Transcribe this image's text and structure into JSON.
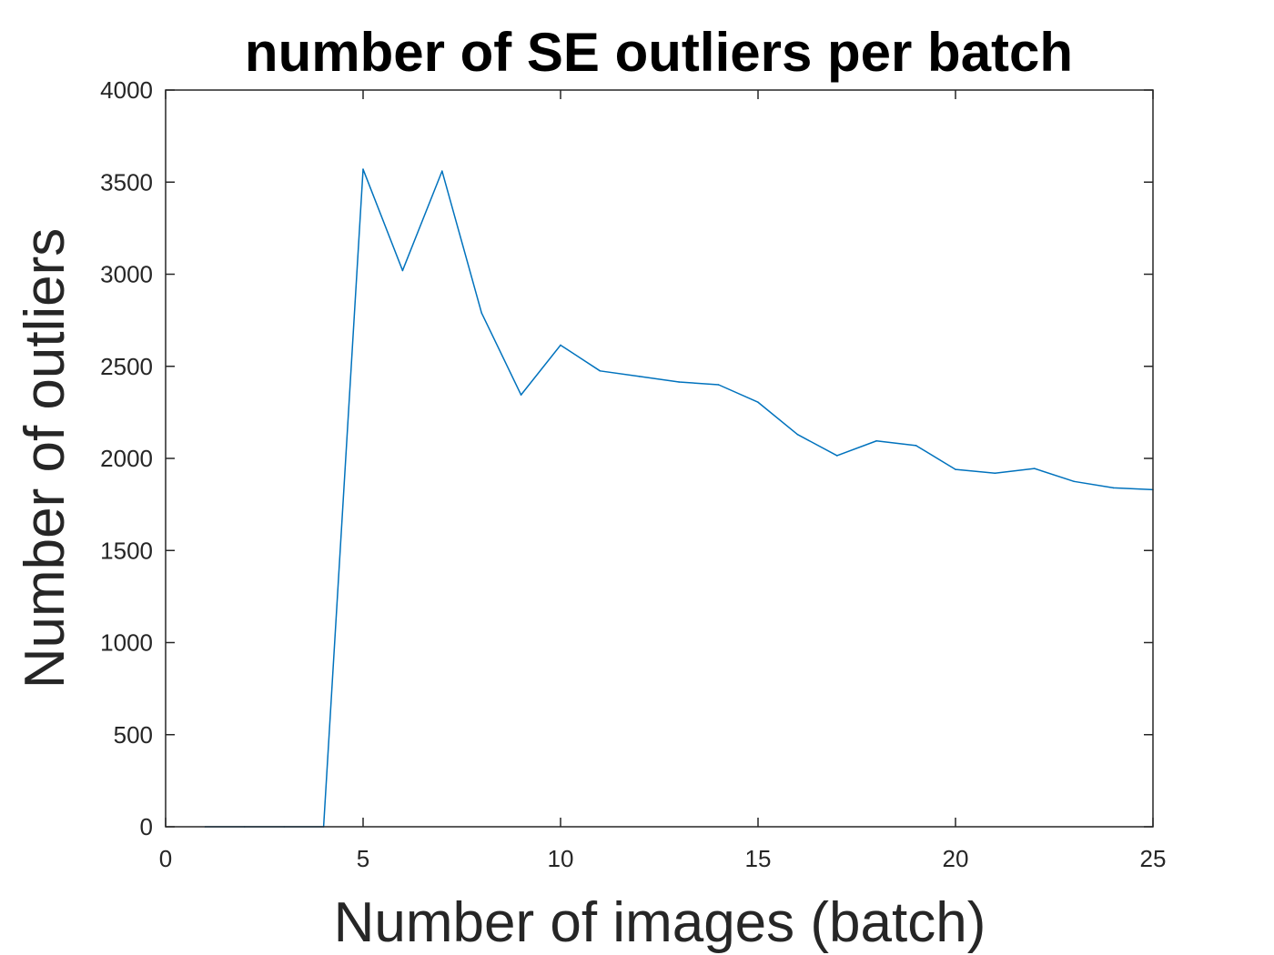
{
  "chart_data": {
    "type": "line",
    "title": "number of SE outliers per batch",
    "xlabel": "Number of images (batch)",
    "ylabel": "Number of outliers",
    "xlim": [
      0,
      25
    ],
    "ylim": [
      0,
      4000
    ],
    "xticks": [
      0,
      5,
      10,
      15,
      20,
      25
    ],
    "yticks": [
      0,
      500,
      1000,
      1500,
      2000,
      2500,
      3000,
      3500,
      4000
    ],
    "grid": false,
    "legend": "none",
    "series": [
      {
        "color": "#0072BD",
        "x": [
          1,
          2,
          3,
          4,
          5,
          6,
          7,
          8,
          9,
          10,
          11,
          12,
          13,
          14,
          15,
          16,
          17,
          18,
          19,
          20,
          21,
          22,
          23,
          24,
          25
        ],
        "y": [
          0,
          0,
          0,
          0,
          3570,
          3020,
          3560,
          2790,
          2345,
          2615,
          2475,
          2445,
          2415,
          2400,
          2305,
          2130,
          2015,
          2095,
          2070,
          1940,
          1920,
          1945,
          1875,
          1840,
          1830
        ]
      }
    ]
  }
}
